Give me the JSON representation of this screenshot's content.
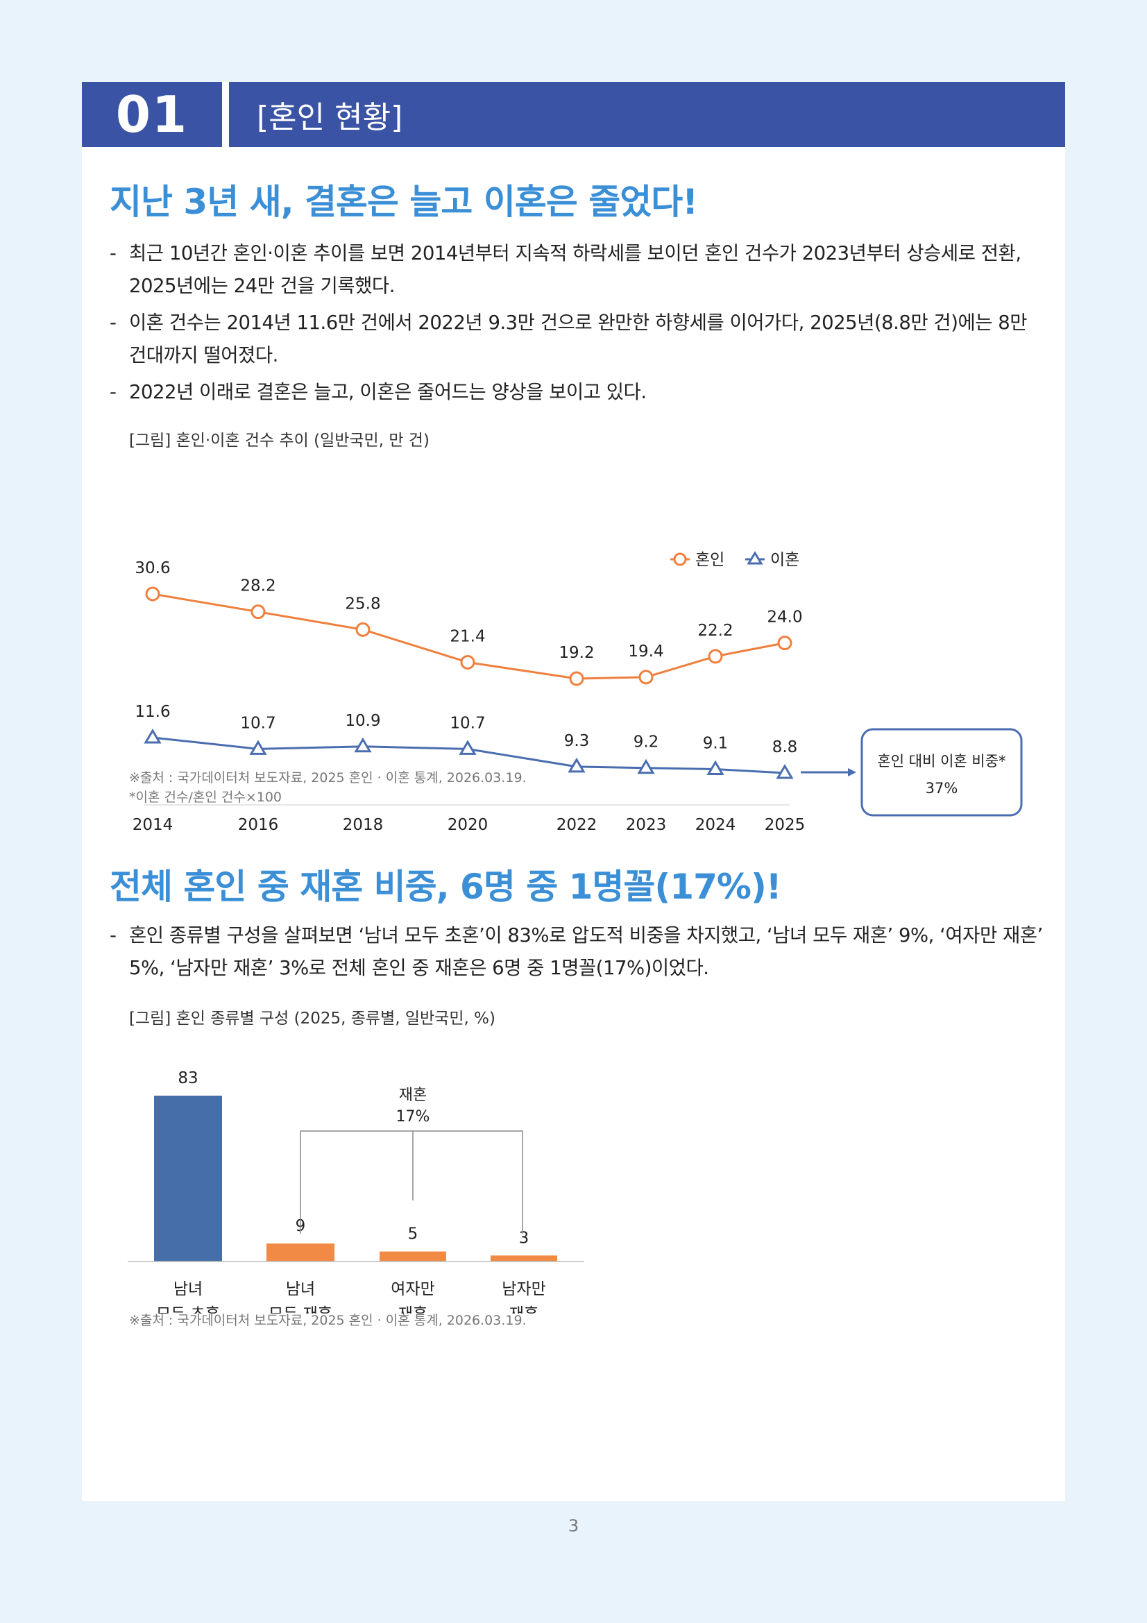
{
  "section": {
    "number": "01",
    "title": "[혼인 현황]"
  },
  "block1": {
    "headline": "지난 3년 새, 결혼은 늘고 이혼은 줄었다!",
    "bullets": [
      "최근 10년간 혼인·이혼 추이를 보면 2014년부터 지속적 하락세를 보이던 혼인 건수가 2023년부터 상승세로 전환, 2025년에는 24만 건을 기록했다.",
      "이혼 건수는 2014년 11.6만 건에서 2022년 9.3만 건으로 완만한 하향세를 이어가다, 2025년(8.8만 건)에는 8만 건대까지 떨어졌다.",
      "2022년 이래로 결혼은 늘고, 이혼은 줄어드는 양상을 보이고 있다."
    ],
    "figure_caption": "[그림] 혼인·이혼 건수 추이 (일반국민, 만 건)",
    "ratio_box": {
      "label": "혼인 대비 이혼 비중*",
      "value": "37%"
    },
    "notes": [
      "※출처 : 국가데이터처 보도자료, 2025 혼인 · 이혼 통계, 2026.03.19.",
      "*이혼 건수/혼인 건수×100"
    ]
  },
  "block2": {
    "headline": "전체 혼인 중 재혼 비중, 6명 중 1명꼴(17%)!",
    "bullets": [
      "혼인 종류별 구성을 살펴보면 ‘남녀 모두 초혼’이 83%로 압도적 비중을 차지했고, ‘남녀 모두 재혼’ 9%, ‘여자만 재혼’ 5%, ‘남자만 재혼’ 3%로 전체 혼인 중 재혼은 6명 중 1명꼴(17%)이었다."
    ],
    "figure_caption": "[그림] 혼인 종류별 구성 (2025, 종류별, 일반국민, %)",
    "bracket_label": [
      "재혼",
      "17%"
    ],
    "notes": [
      "※출처 : 국가데이터처 보도자료, 2025 혼인 · 이혼 통계, 2026.03.19."
    ]
  },
  "page_number": "3",
  "colors": {
    "brand_blue": "#3a53a4",
    "headline_blue": "#3b8fd6",
    "marriage_orange": "#ef7f3c",
    "divorce_blue": "#4a6db0",
    "bar_blue": "#466ea8",
    "bar_orange": "#f08a45"
  },
  "chart_data": [
    {
      "type": "line",
      "x": [
        "2014",
        "2016",
        "2018",
        "2020",
        "2022",
        "2023",
        "2024",
        "2025"
      ],
      "series": [
        {
          "name": "혼인",
          "values": [
            30.6,
            28.2,
            25.8,
            21.4,
            19.2,
            19.4,
            22.2,
            24.0
          ],
          "labels": [
            "30.6",
            "28.2",
            "25.8",
            "21.4",
            "19.2",
            "19.4",
            "22.2",
            "24.0"
          ],
          "marker": "circle",
          "color": "#ef7f3c"
        },
        {
          "name": "이혼",
          "values": [
            11.6,
            10.7,
            10.9,
            10.7,
            9.3,
            9.2,
            9.1,
            8.8
          ],
          "labels": [
            "11.6",
            "10.7",
            "10.9",
            "10.7",
            "9.3",
            "9.2",
            "9.1",
            "8.8"
          ],
          "marker": "triangle",
          "color": "#4a6db0"
        }
      ],
      "legend": "top-right",
      "grid": false
    },
    {
      "type": "bar",
      "categories": [
        [
          "남녀",
          "모두 초혼"
        ],
        [
          "남녀",
          "모두 재혼"
        ],
        [
          "여자만",
          "재혼"
        ],
        [
          "남자만",
          "재혼"
        ]
      ],
      "values": [
        83,
        9,
        5,
        3
      ],
      "colors": [
        "#466ea8",
        "#f08a45",
        "#f08a45",
        "#f08a45"
      ],
      "ylim": [
        0,
        83
      ]
    }
  ]
}
